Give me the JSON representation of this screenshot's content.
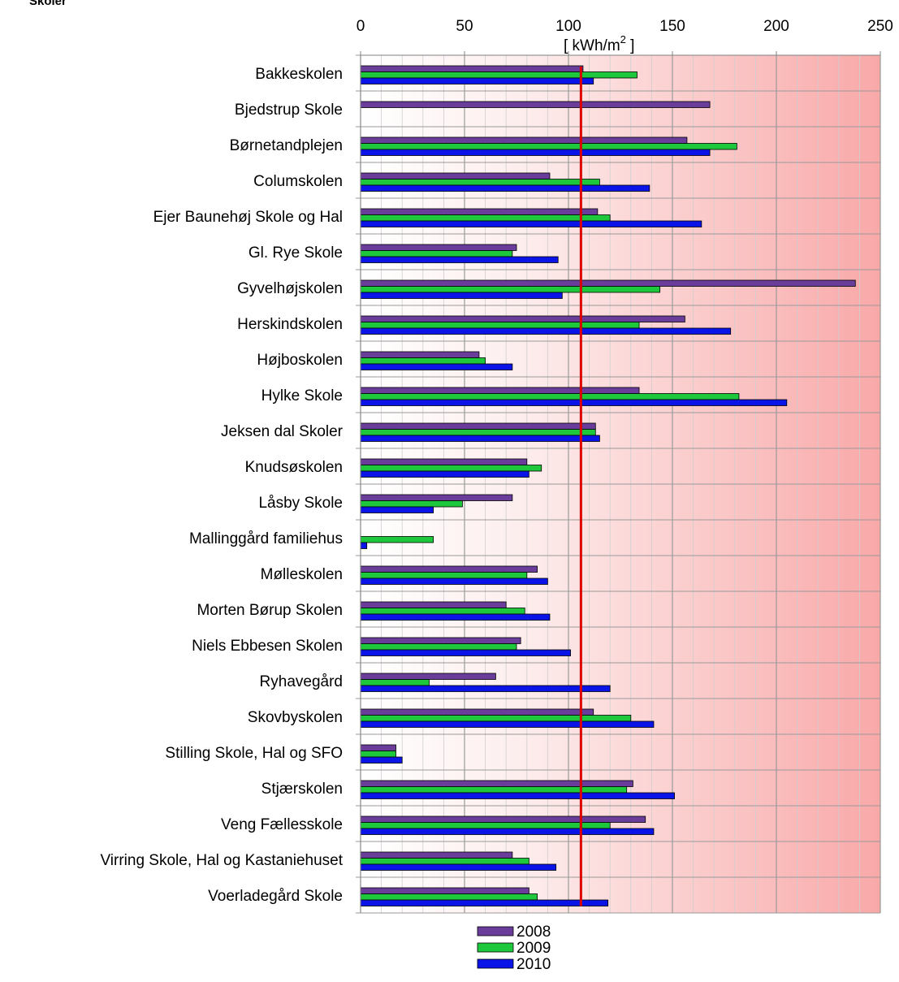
{
  "chart_data": {
    "type": "bar",
    "orientation": "horizontal",
    "title": "Skoler",
    "xlabel_text": "[ kWh/m",
    "xlabel_superscript": "2",
    "xlabel_close": " ]",
    "xlim": [
      0,
      250
    ],
    "xticks": [
      0,
      50,
      100,
      150,
      200,
      250
    ],
    "grid": true,
    "legend_placement": "bottom",
    "reference_line": {
      "value": 106,
      "color": "#dd0000"
    },
    "categories": [
      "Bakkeskolen",
      "Bjedstrup Skole",
      "Børnetandplejen",
      "Columskolen",
      "Ejer Baunehøj Skole og Hal",
      "Gl. Rye Skole",
      "Gyvelhøjskolen",
      "Herskindskolen",
      "Højboskolen",
      "Hylke Skole",
      "Jeksen dal Skoler",
      "Knudsøskolen",
      "Låsby Skole",
      "Mallinggård familiehus",
      "Mølleskolen",
      "Morten Børup Skolen",
      "Niels Ebbesen Skolen",
      "Ryhavegård",
      "Skovbyskolen",
      "Stilling Skole, Hal og SFO",
      "Stjærskolen",
      "Veng Fællesskole",
      "Virring Skole, Hal og Kastaniehuset",
      "Voerladegård Skole"
    ],
    "series": [
      {
        "name": "2008",
        "color": "#6a3d9a",
        "values": [
          107,
          168,
          157,
          91,
          114,
          75,
          238,
          156,
          57,
          134,
          113,
          80,
          73,
          null,
          85,
          70,
          77,
          65,
          112,
          17,
          131,
          137,
          73,
          81
        ]
      },
      {
        "name": "2009",
        "color": "#1ec83c",
        "values": [
          133,
          null,
          181,
          115,
          120,
          73,
          144,
          134,
          60,
          182,
          113,
          87,
          49,
          35,
          80,
          79,
          75,
          33,
          130,
          17,
          128,
          120,
          81,
          85
        ]
      },
      {
        "name": "2010",
        "color": "#0a14e6",
        "values": [
          112,
          null,
          168,
          139,
          164,
          95,
          97,
          178,
          73,
          205,
          115,
          81,
          35,
          3,
          90,
          91,
          101,
          120,
          141,
          20,
          151,
          141,
          94,
          119
        ]
      }
    ]
  }
}
